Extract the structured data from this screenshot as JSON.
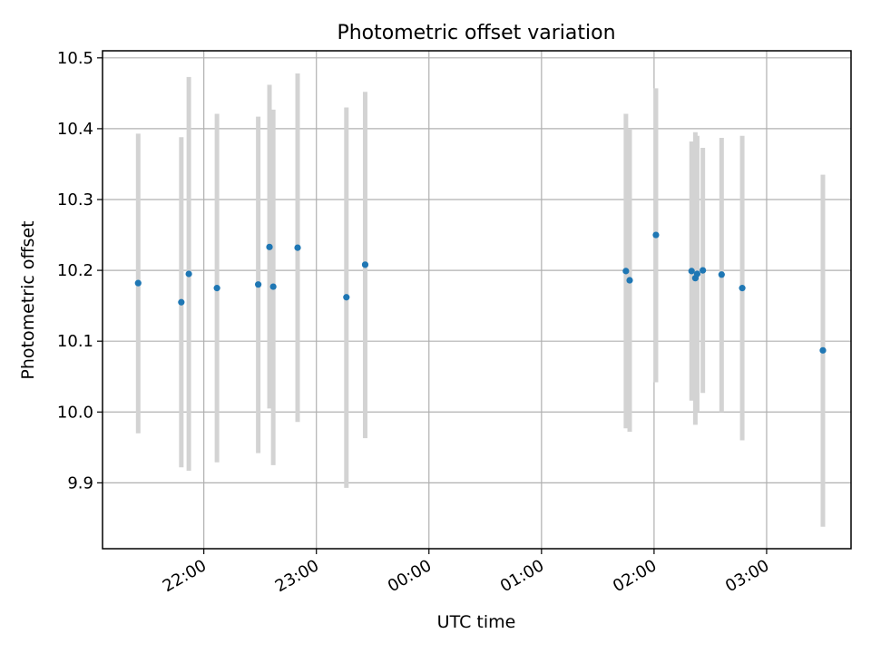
{
  "chart_data": {
    "type": "scatter",
    "title": "Photometric offset variation",
    "xlabel": "UTC time",
    "ylabel": "Photometric offset",
    "xlim": [
      "21:06",
      "03:45"
    ],
    "ylim": [
      9.807,
      10.51
    ],
    "grid": true,
    "x_ticks": [
      "22:00",
      "23:00",
      "00:00",
      "01:00",
      "02:00",
      "03:00"
    ],
    "y_ticks": [
      "9.9",
      "10.0",
      "10.1",
      "10.2",
      "10.3",
      "10.4",
      "10.5"
    ],
    "colors": {
      "points": "#1f77b4",
      "error_bars": "#d3d3d3",
      "grid": "#b0b0b0"
    },
    "series": [
      {
        "points": [
          {
            "t": "21:25",
            "y": 10.182,
            "lo": 9.97,
            "hi": 10.393
          },
          {
            "t": "21:48",
            "y": 10.155,
            "lo": 9.922,
            "hi": 10.388
          },
          {
            "t": "21:52",
            "y": 10.195,
            "lo": 9.917,
            "hi": 10.473
          },
          {
            "t": "22:07",
            "y": 10.175,
            "lo": 9.929,
            "hi": 10.421
          },
          {
            "t": "22:29",
            "y": 10.18,
            "lo": 9.942,
            "hi": 10.417
          },
          {
            "t": "22:35",
            "y": 10.233,
            "lo": 10.005,
            "hi": 10.462
          },
          {
            "t": "22:37",
            "y": 10.177,
            "lo": 9.925,
            "hi": 10.427
          },
          {
            "t": "22:50",
            "y": 10.232,
            "lo": 9.986,
            "hi": 10.478
          },
          {
            "t": "23:16",
            "y": 10.162,
            "lo": 9.893,
            "hi": 10.43
          },
          {
            "t": "23:26",
            "y": 10.208,
            "lo": 9.963,
            "hi": 10.452
          },
          {
            "t": "01:45",
            "y": 10.199,
            "lo": 9.977,
            "hi": 10.421
          },
          {
            "t": "01:47",
            "y": 10.186,
            "lo": 9.972,
            "hi": 10.4
          },
          {
            "t": "02:01",
            "y": 10.25,
            "lo": 10.042,
            "hi": 10.457
          },
          {
            "t": "02:20",
            "y": 10.199,
            "lo": 10.016,
            "hi": 10.382
          },
          {
            "t": "02:22",
            "y": 10.189,
            "lo": 9.982,
            "hi": 10.395
          },
          {
            "t": "02:23",
            "y": 10.195,
            "lo": 10.0,
            "hi": 10.39
          },
          {
            "t": "02:26",
            "y": 10.2,
            "lo": 10.027,
            "hi": 10.373
          },
          {
            "t": "02:36",
            "y": 10.194,
            "lo": 10.0,
            "hi": 10.387
          },
          {
            "t": "02:47",
            "y": 10.175,
            "lo": 9.96,
            "hi": 10.39
          },
          {
            "t": "03:30",
            "y": 10.087,
            "lo": 9.838,
            "hi": 10.335
          }
        ]
      }
    ]
  }
}
